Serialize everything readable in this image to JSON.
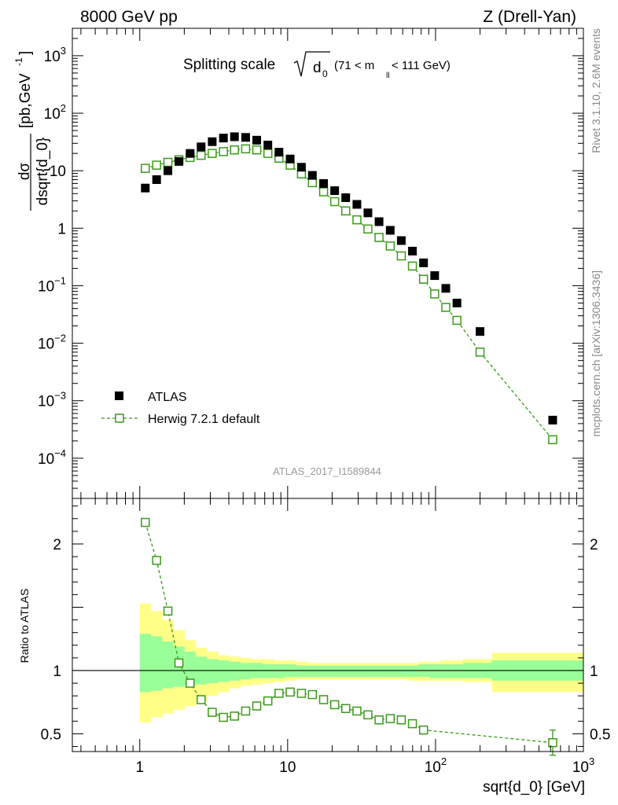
{
  "header": {
    "left": "8000 GeV pp",
    "right": "Z (Drell-Yan)"
  },
  "title": {
    "prefix": "Splitting scale",
    "var": "d",
    "var_sub": "0",
    "cut_pre": "(71 < m",
    "cut_sub": "ll",
    "cut_post": " < 111 GeV)"
  },
  "ylabel": {
    "num": "dσ",
    "den": "dsqrt{d_0}",
    "units": "[pb,GeV",
    "units_exp": "-1",
    "units_close": "]"
  },
  "ratio_ylabel": "Ratio to ATLAS",
  "xlabel": "sqrt{d_0} [GeV]",
  "analysis_id": "ATLAS_2017_I1589844",
  "side_labels": {
    "rivet": "Rivet 3.1.10,  2.6M events",
    "mcplots": "mcplots.cern.ch [arXiv:1306.3436]"
  },
  "legend": {
    "data": "ATLAS",
    "mc": "Herwig 7.2.1 default"
  },
  "colors": {
    "data": "#000000",
    "mc": "#3a9a1a",
    "band_outer": "#ffff88",
    "band_inner": "#99ff99",
    "reference_line": "#000000"
  },
  "chart_data": [
    {
      "type": "scatter",
      "panel": "main",
      "x_scale": "log",
      "y_scale": "log",
      "xlim": [
        0.35,
        1000
      ],
      "ylim": [
        2e-05,
        3000
      ],
      "x_ticks": [
        {
          "value": 1,
          "label": "1"
        },
        {
          "value": 10,
          "label": "10"
        },
        {
          "value": 100,
          "label": "10",
          "exp": "2"
        },
        {
          "value": 1000,
          "label": "10",
          "exp": "3"
        }
      ],
      "y_ticks": [
        {
          "value": 0.0001,
          "label": "10",
          "exp": "−4"
        },
        {
          "value": 0.001,
          "label": "10",
          "exp": "−3"
        },
        {
          "value": 0.01,
          "label": "10",
          "exp": "−2"
        },
        {
          "value": 0.1,
          "label": "10",
          "exp": "−1"
        },
        {
          "value": 1,
          "label": "1"
        },
        {
          "value": 10,
          "label": "10"
        },
        {
          "value": 100,
          "label": "10",
          "exp": "2"
        },
        {
          "value": 1000,
          "label": "10",
          "exp": "3"
        }
      ],
      "series": [
        {
          "name": "ATLAS",
          "marker": "filled-square",
          "x": [
            1.09,
            1.3,
            1.55,
            1.84,
            2.19,
            2.6,
            3.09,
            3.68,
            4.37,
            5.2,
            6.18,
            7.35,
            8.74,
            10.4,
            12.4,
            14.7,
            17.5,
            20.8,
            24.7,
            29.4,
            34.9,
            41.5,
            49.4,
            58.7,
            69.8,
            83.0,
            98.7,
            117.4,
            139.6,
            200,
            620
          ],
          "y": [
            5.0,
            7.0,
            10.0,
            14.5,
            20,
            26,
            32,
            37,
            39,
            38,
            34,
            28,
            21,
            16,
            11.5,
            8.3,
            6.0,
            4.5,
            3.4,
            2.6,
            1.85,
            1.3,
            0.92,
            0.61,
            0.4,
            0.25,
            0.15,
            0.09,
            0.05,
            0.016,
            0.00046
          ]
        },
        {
          "name": "Herwig 7.2.1 default",
          "marker": "open-square",
          "line": "dashed",
          "x": [
            1.09,
            1.3,
            1.55,
            1.84,
            2.19,
            2.6,
            3.09,
            3.68,
            4.37,
            5.2,
            6.18,
            7.35,
            8.74,
            10.4,
            12.4,
            14.7,
            17.5,
            20.8,
            24.7,
            29.4,
            34.9,
            41.5,
            49.4,
            58.7,
            69.8,
            83.0,
            98.7,
            117.4,
            139.6,
            200,
            620
          ],
          "y": [
            11,
            12.5,
            14,
            15.5,
            17,
            18.5,
            20,
            21.5,
            23,
            24,
            23,
            20,
            16.5,
            12.5,
            8.8,
            6.2,
            4.3,
            2.9,
            2.0,
            1.4,
            0.97,
            0.69,
            0.49,
            0.33,
            0.22,
            0.13,
            0.072,
            0.042,
            0.025,
            0.007,
            0.00021
          ]
        }
      ]
    },
    {
      "type": "line",
      "panel": "ratio",
      "x_scale": "log",
      "xlim": [
        0.35,
        1000
      ],
      "ylim": [
        0.36,
        2.36
      ],
      "y_ticks": [
        {
          "value": 0.5,
          "label": "0.5"
        },
        {
          "value": 1,
          "label": "1"
        },
        {
          "value": 1.5,
          "label": ""
        },
        {
          "value": 2,
          "label": "2"
        }
      ],
      "reference_line": 1,
      "band_edges": [
        1.0,
        1.19,
        1.42,
        1.69,
        2.01,
        2.39,
        2.84,
        3.38,
        4.02,
        4.79,
        5.69,
        6.77,
        8.05,
        9.58,
        11.4,
        13.55,
        16.1,
        19.15,
        22.8,
        27.1,
        32.2,
        38.3,
        45.6,
        54.2,
        64.5,
        76.7,
        91.2,
        108.5,
        129.0,
        153.4,
        240,
        1000
      ],
      "band_outer": {
        "lo": [
          0.59,
          0.63,
          0.66,
          0.69,
          0.72,
          0.75,
          0.8,
          0.83,
          0.86,
          0.88,
          0.89,
          0.9,
          0.91,
          0.92,
          0.93,
          0.93,
          0.93,
          0.93,
          0.93,
          0.93,
          0.93,
          0.93,
          0.93,
          0.93,
          0.92,
          0.92,
          0.92,
          0.92,
          0.92,
          0.91,
          0.83
        ],
        "hi": [
          1.53,
          1.47,
          1.4,
          1.32,
          1.24,
          1.18,
          1.15,
          1.12,
          1.11,
          1.1,
          1.09,
          1.09,
          1.08,
          1.08,
          1.07,
          1.06,
          1.06,
          1.06,
          1.06,
          1.06,
          1.06,
          1.06,
          1.06,
          1.06,
          1.06,
          1.07,
          1.07,
          1.08,
          1.08,
          1.09,
          1.14
        ]
      },
      "band_inner": {
        "lo": [
          0.83,
          0.84,
          0.86,
          0.87,
          0.88,
          0.89,
          0.9,
          0.91,
          0.92,
          0.93,
          0.94,
          0.94,
          0.94,
          0.95,
          0.95,
          0.95,
          0.95,
          0.95,
          0.95,
          0.95,
          0.95,
          0.95,
          0.95,
          0.95,
          0.95,
          0.95,
          0.94,
          0.94,
          0.94,
          0.94,
          0.92
        ],
        "hi": [
          1.29,
          1.27,
          1.23,
          1.19,
          1.15,
          1.11,
          1.09,
          1.08,
          1.07,
          1.06,
          1.06,
          1.05,
          1.05,
          1.05,
          1.04,
          1.04,
          1.04,
          1.04,
          1.04,
          1.04,
          1.04,
          1.04,
          1.04,
          1.04,
          1.04,
          1.05,
          1.05,
          1.05,
          1.05,
          1.06,
          1.08
        ]
      },
      "series": [
        {
          "name": "Herwig 7.2.1 default",
          "marker": "open-square",
          "line": "dashed",
          "x": [
            1.09,
            1.3,
            1.55,
            1.84,
            2.19,
            2.6,
            3.09,
            3.68,
            4.37,
            5.2,
            6.18,
            7.35,
            8.74,
            10.4,
            12.4,
            14.7,
            17.5,
            20.8,
            24.7,
            29.4,
            34.9,
            41.5,
            49.4,
            58.7,
            69.8,
            83.0,
            620
          ],
          "y": [
            2.17,
            1.87,
            1.47,
            1.06,
            0.9,
            0.77,
            0.67,
            0.63,
            0.64,
            0.68,
            0.72,
            0.76,
            0.82,
            0.83,
            0.82,
            0.81,
            0.77,
            0.73,
            0.7,
            0.68,
            0.65,
            0.61,
            0.62,
            0.61,
            0.58,
            0.53,
            0.43
          ]
        }
      ]
    }
  ]
}
